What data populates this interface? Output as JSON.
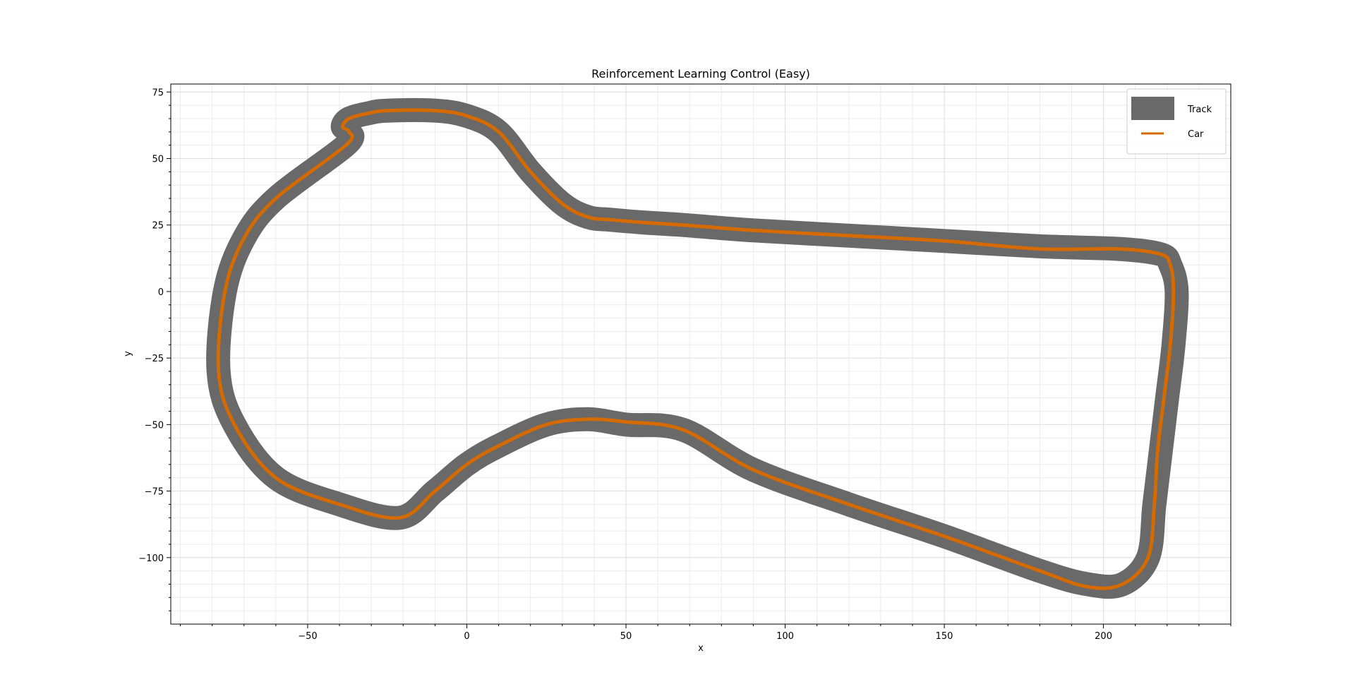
{
  "chart_data": {
    "type": "line",
    "title": "Reinforcement Learning Control (Easy)",
    "xlabel": "x",
    "ylabel": "y",
    "xlim": [
      -93,
      240
    ],
    "ylim": [
      -125,
      78
    ],
    "grid": true,
    "minor_grid": true,
    "legend_placement": "top-right",
    "x_ticks": [
      -50,
      0,
      50,
      100,
      150,
      200
    ],
    "y_ticks": [
      75,
      50,
      25,
      0,
      -25,
      -50,
      -75,
      -100
    ],
    "x_tick_labels": [
      "−50",
      "0",
      "50",
      "100",
      "150",
      "200"
    ],
    "y_tick_labels": [
      "75",
      "50",
      "25",
      "0",
      "−25",
      "−50",
      "−75",
      "−100"
    ],
    "colors": {
      "track": "#696969",
      "car": "#d46a00",
      "grid": "#dddddd"
    },
    "series": [
      {
        "name": "Track",
        "kind": "band",
        "x": [
          -21,
          -40,
          -60,
          -73,
          -78,
          -76,
          -70,
          -60,
          -38,
          -37,
          -39,
          -37,
          -31,
          -25,
          -10,
          0,
          10,
          20,
          30,
          38,
          45,
          55,
          68,
          90,
          120,
          150,
          180,
          205,
          218,
          221,
          223,
          222,
          220,
          218,
          216,
          214,
          206,
          195,
          180,
          150,
          120,
          90,
          68,
          50,
          38,
          25,
          10,
          0,
          -10
        ],
        "y": [
          -85,
          -80,
          -70,
          -50,
          -30,
          0,
          20,
          35,
          55,
          60,
          62,
          65,
          67,
          68,
          68,
          66,
          60,
          45,
          33,
          28,
          27,
          26,
          25,
          23,
          21,
          19,
          17,
          16,
          14,
          10,
          0,
          -20,
          -40,
          -60,
          -80,
          -100,
          -110,
          -110,
          -105,
          -92,
          -80,
          -67,
          -52,
          -50,
          -48,
          -50,
          -58,
          -65,
          -75
        ]
      },
      {
        "name": "Car",
        "kind": "line",
        "x": [
          -21,
          -40,
          -60,
          -73,
          -78,
          -76,
          -70,
          -60,
          -38,
          -37,
          -39,
          -37,
          -31,
          -25,
          -10,
          0,
          10,
          20,
          30,
          38,
          45,
          55,
          68,
          90,
          120,
          150,
          180,
          205,
          218,
          221,
          222,
          221,
          219,
          217,
          216,
          214,
          206,
          195,
          180,
          150,
          120,
          90,
          68,
          50,
          38,
          25,
          10,
          0,
          -10
        ],
        "y": [
          -85,
          -80,
          -70,
          -50,
          -30,
          0,
          20,
          35,
          55,
          60,
          62,
          65,
          67,
          68,
          68,
          66,
          60,
          45,
          33,
          28,
          27,
          26,
          25,
          23,
          21,
          19,
          16,
          16,
          14,
          10,
          0,
          -20,
          -40,
          -60,
          -80,
          -100,
          -110,
          -111,
          -105,
          -92,
          -80,
          -67,
          -52,
          -49,
          -48,
          -50,
          -58,
          -65,
          -75
        ]
      }
    ]
  }
}
